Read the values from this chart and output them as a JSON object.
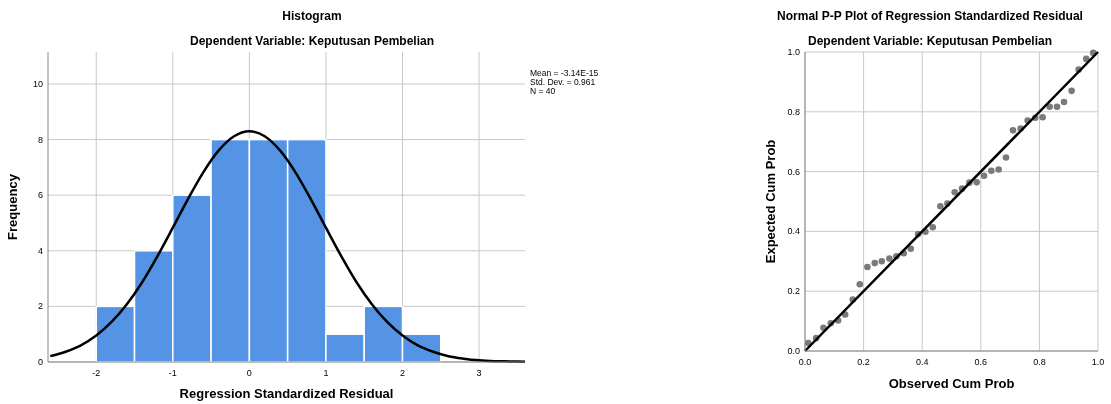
{
  "chart_data": [
    {
      "type": "histogram",
      "title": "Histogram",
      "subtitle": "Dependent Variable: Keputusan Pembelian",
      "xlabel": "Regression Standardized Residual",
      "ylabel": "Frequency",
      "bins": [
        -2,
        -1.5,
        -1,
        -0.5,
        0,
        0.5,
        1,
        1.5,
        2,
        2.5
      ],
      "values": [
        2,
        4,
        6,
        8,
        8,
        8,
        1,
        2,
        1
      ],
      "color": "#5594e4",
      "series": [
        {
          "type": "line",
          "color": "#000000",
          "x": [
            -2.6,
            -2.4,
            -2.2,
            -2,
            -1.8,
            -1.6,
            -1.4,
            -1.2,
            -1,
            -0.8,
            -0.6,
            -0.4,
            -0.2,
            0,
            0.2,
            0.4,
            0.6,
            0.8,
            1,
            1.2,
            1.4,
            1.6,
            1.8,
            2,
            2.2,
            2.4,
            2.6,
            2.8,
            3,
            3.2,
            3.4,
            3.6
          ],
          "values": [
            0.21,
            0.37,
            0.6,
            0.95,
            1.44,
            2.08,
            2.87,
            3.81,
            4.83,
            5.87,
            6.83,
            7.61,
            8.12,
            8.3,
            8.12,
            7.61,
            6.83,
            5.87,
            4.83,
            3.81,
            2.87,
            2.08,
            1.44,
            0.95,
            0.6,
            0.37,
            0.21,
            0.12,
            0.06,
            0.03,
            0.02,
            0.01
          ]
        }
      ],
      "xlim": [
        -2.63,
        3.6
      ],
      "xticks": [
        -2,
        -1,
        0,
        1,
        2,
        3
      ],
      "ylim": [
        0,
        11.15
      ],
      "yticks": [
        0,
        2,
        4,
        6,
        8,
        10
      ],
      "grid": true,
      "annotations": [
        "Mean = -3.14E-15",
        "Std. Dev. = 0.961",
        "N = 40"
      ]
    },
    {
      "type": "scatter",
      "title": "Normal P-P Plot of Regression Standardized Residual",
      "subtitle": "Dependent Variable: Keputusan Pembelian",
      "xlabel": "Observed Cum Prob",
      "ylabel": "Expected Cum Prob",
      "marker": "circle",
      "series": [
        {
          "color": "#7a7a7a",
          "x": [
            0.011,
            0.038,
            0.063,
            0.088,
            0.113,
            0.137,
            0.163,
            0.187,
            0.213,
            0.238,
            0.262,
            0.288,
            0.312,
            0.337,
            0.361,
            0.386,
            0.411,
            0.436,
            0.462,
            0.486,
            0.511,
            0.536,
            0.561,
            0.586,
            0.611,
            0.636,
            0.661,
            0.686,
            0.71,
            0.736,
            0.76,
            0.786,
            0.811,
            0.835,
            0.86,
            0.884,
            0.91,
            0.934,
            0.96,
            0.984
          ],
          "values": [
            0.027,
            0.043,
            0.078,
            0.093,
            0.102,
            0.122,
            0.172,
            0.223,
            0.281,
            0.294,
            0.3,
            0.309,
            0.317,
            0.327,
            0.342,
            0.391,
            0.399,
            0.414,
            0.484,
            0.493,
            0.531,
            0.543,
            0.563,
            0.564,
            0.586,
            0.603,
            0.607,
            0.647,
            0.738,
            0.744,
            0.771,
            0.78,
            0.782,
            0.817,
            0.817,
            0.833,
            0.87,
            0.941,
            0.977,
            0.997
          ]
        },
        {
          "type": "line",
          "marker": "none",
          "color": "#000000",
          "x": [
            0,
            1
          ],
          "values": [
            0,
            1
          ]
        }
      ],
      "xlim": [
        0,
        1
      ],
      "xticks": [
        {
          "value": 0,
          "label": "0.0"
        },
        {
          "value": 0.2,
          "label": "0.2"
        },
        {
          "value": 0.4,
          "label": "0.4"
        },
        {
          "value": 0.6,
          "label": "0.6"
        },
        {
          "value": 0.8,
          "label": "0.8"
        },
        {
          "value": 1,
          "label": "1.0"
        }
      ],
      "ylim": [
        0,
        1
      ],
      "yticks": [
        {
          "value": 0,
          "label": "0.0"
        },
        {
          "value": 0.2,
          "label": "0.2"
        },
        {
          "value": 0.4,
          "label": "0.4"
        },
        {
          "value": 0.6,
          "label": "0.6"
        },
        {
          "value": 0.8,
          "label": "0.8"
        },
        {
          "value": 1,
          "label": "1.0"
        }
      ],
      "grid": true
    }
  ]
}
